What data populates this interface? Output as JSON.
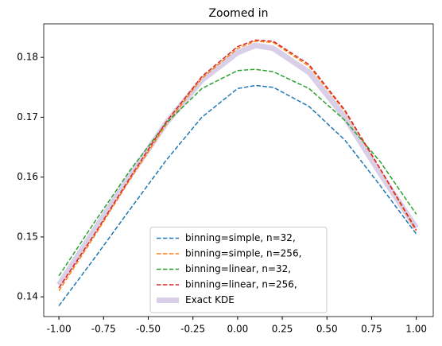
{
  "chart_data": {
    "type": "line",
    "title": "Zoomed in",
    "x": [
      -1,
      -0.8,
      -0.6,
      -0.4,
      -0.2,
      0,
      0.1,
      0.2,
      0.4,
      0.6,
      0.8,
      1
    ],
    "series": [
      {
        "name": "binning=simple, n=32,",
        "color": "#1f77b4",
        "linestyle": "dashed",
        "values": [
          0.1385,
          0.1465,
          0.1547,
          0.1628,
          0.17,
          0.1748,
          0.1753,
          0.175,
          0.1718,
          0.1662,
          0.1585,
          0.1505
        ]
      },
      {
        "name": "binning=simple, n=256,",
        "color": "#ff7f0e",
        "linestyle": "dashed",
        "values": [
          0.141,
          0.1502,
          0.1597,
          0.1688,
          0.1765,
          0.1815,
          0.1827,
          0.1825,
          0.1785,
          0.171,
          0.1612,
          0.151
        ]
      },
      {
        "name": "binning=linear, n=32,",
        "color": "#2ca02c",
        "linestyle": "dashed",
        "values": [
          0.1435,
          0.1525,
          0.1612,
          0.169,
          0.1748,
          0.1778,
          0.178,
          0.1776,
          0.1748,
          0.1695,
          0.1625,
          0.1538
        ]
      },
      {
        "name": "binning=linear, n=256,",
        "color": "#d62728",
        "linestyle": "dashed",
        "values": [
          0.1415,
          0.1505,
          0.16,
          0.1692,
          0.1768,
          0.1818,
          0.1829,
          0.1827,
          0.1788,
          0.1712,
          0.1613,
          0.1512
        ]
      },
      {
        "name": "Exact KDE",
        "color": "#dacfe8",
        "linestyle": "thick",
        "values": [
          0.142,
          0.1512,
          0.1603,
          0.169,
          0.1762,
          0.1808,
          0.182,
          0.1815,
          0.1775,
          0.17,
          0.1605,
          0.1515
        ]
      }
    ],
    "xlim": [
      -1.085,
      1.095
    ],
    "ylim": [
      0.1367,
      0.1856
    ],
    "xticks": [
      {
        "value": -1,
        "label": "-1.00"
      },
      {
        "value": -0.75,
        "label": "-0.75"
      },
      {
        "value": -0.5,
        "label": "-0.50"
      },
      {
        "value": -0.25,
        "label": "-0.25"
      },
      {
        "value": 0,
        "label": "0.00"
      },
      {
        "value": 0.25,
        "label": "0.25"
      },
      {
        "value": 0.5,
        "label": "0.50"
      },
      {
        "value": 0.75,
        "label": "0.75"
      },
      {
        "value": 1,
        "label": "1.00"
      }
    ],
    "yticks": [
      0.14,
      0.15,
      0.16,
      0.17,
      0.18
    ],
    "legend": "lower center"
  }
}
